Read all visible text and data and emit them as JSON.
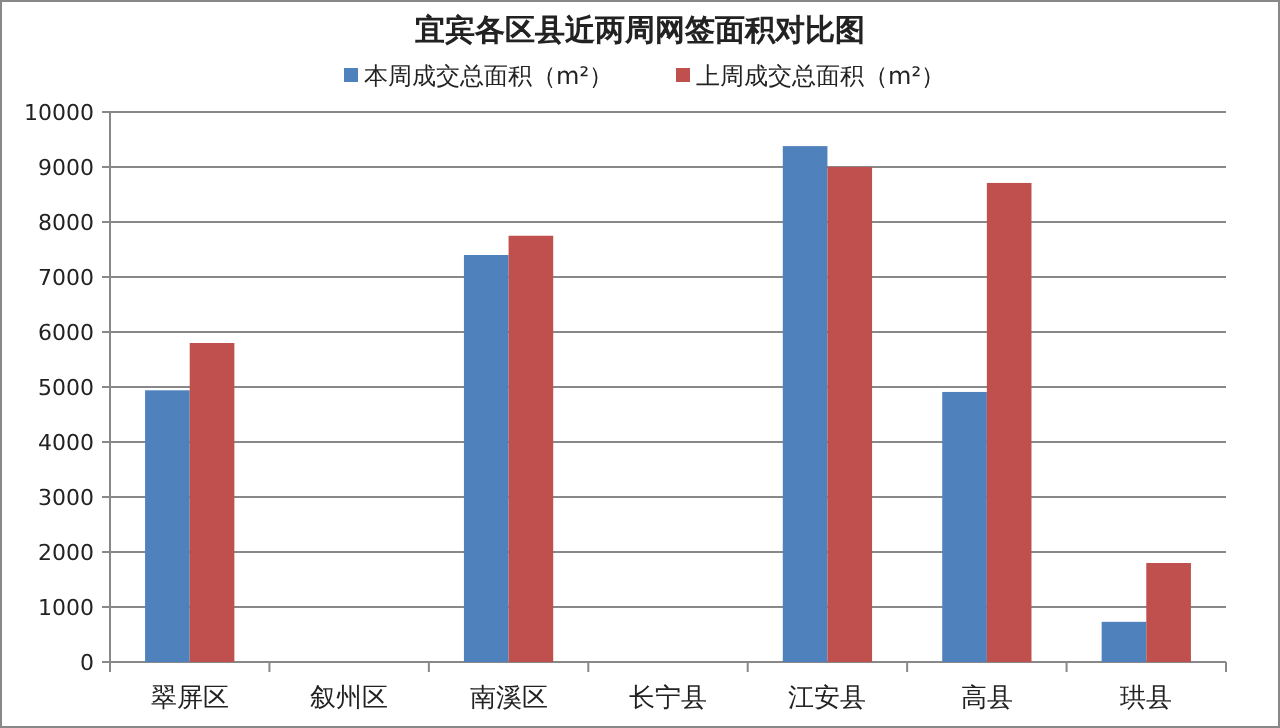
{
  "chart_data": {
    "type": "bar",
    "title": "宜宾各区县近两周网签面积对比图",
    "categories": [
      "翠屏区",
      "叙州区",
      "南溪区",
      "长宁县",
      "江安县",
      "高县",
      "珙县"
    ],
    "series": [
      {
        "name": "本周成交总面积（m²）",
        "color": "#4f81bd",
        "values": [
          4940,
          0,
          7400,
          0,
          9380,
          4910,
          730
        ]
      },
      {
        "name": "上周成交总面积（m²）",
        "color": "#c0504d",
        "values": [
          5800,
          0,
          7750,
          0,
          9000,
          8710,
          1800
        ]
      }
    ],
    "ylim": [
      0,
      10000
    ],
    "yticks": [
      0,
      1000,
      2000,
      3000,
      4000,
      5000,
      6000,
      7000,
      8000,
      9000,
      10000
    ],
    "grid": "y",
    "legend": "top"
  }
}
